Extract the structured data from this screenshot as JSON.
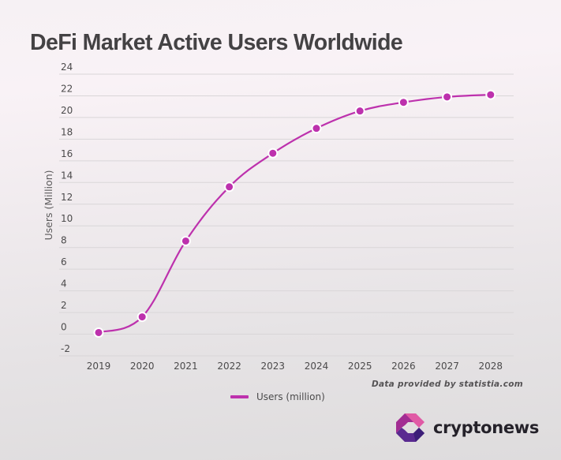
{
  "chart_data": {
    "type": "line",
    "title": "DeFi Market Active Users Worldwide",
    "xlabel": "",
    "ylabel": "Users (Million)",
    "x": [
      "2019",
      "2020",
      "2021",
      "2022",
      "2023",
      "2024",
      "2025",
      "2026",
      "2027",
      "2028"
    ],
    "series": [
      {
        "name": "Users (million)",
        "color": "#bd31ad",
        "values": [
          0.15,
          1.6,
          8.6,
          13.6,
          16.7,
          19.0,
          20.6,
          21.4,
          21.9,
          22.1
        ]
      }
    ],
    "yticks": [
      "24",
      "22",
      "20",
      "18",
      "16",
      "14",
      "12",
      "10",
      "8",
      "6",
      "4",
      "2",
      "0",
      "-2"
    ],
    "ylim": [
      -2,
      24
    ],
    "grid": true,
    "legend": "bottom-center"
  },
  "credit": "Data provided by statistia.com",
  "brand": {
    "name": "cryptonews",
    "colors": {
      "pink": "#e05aa5",
      "magenta": "#a22d93",
      "purple": "#5a2a90",
      "dark_purple": "#3c1e78"
    }
  },
  "style": {
    "grid_color": "#d9d6d8",
    "title_color": "#444244"
  }
}
